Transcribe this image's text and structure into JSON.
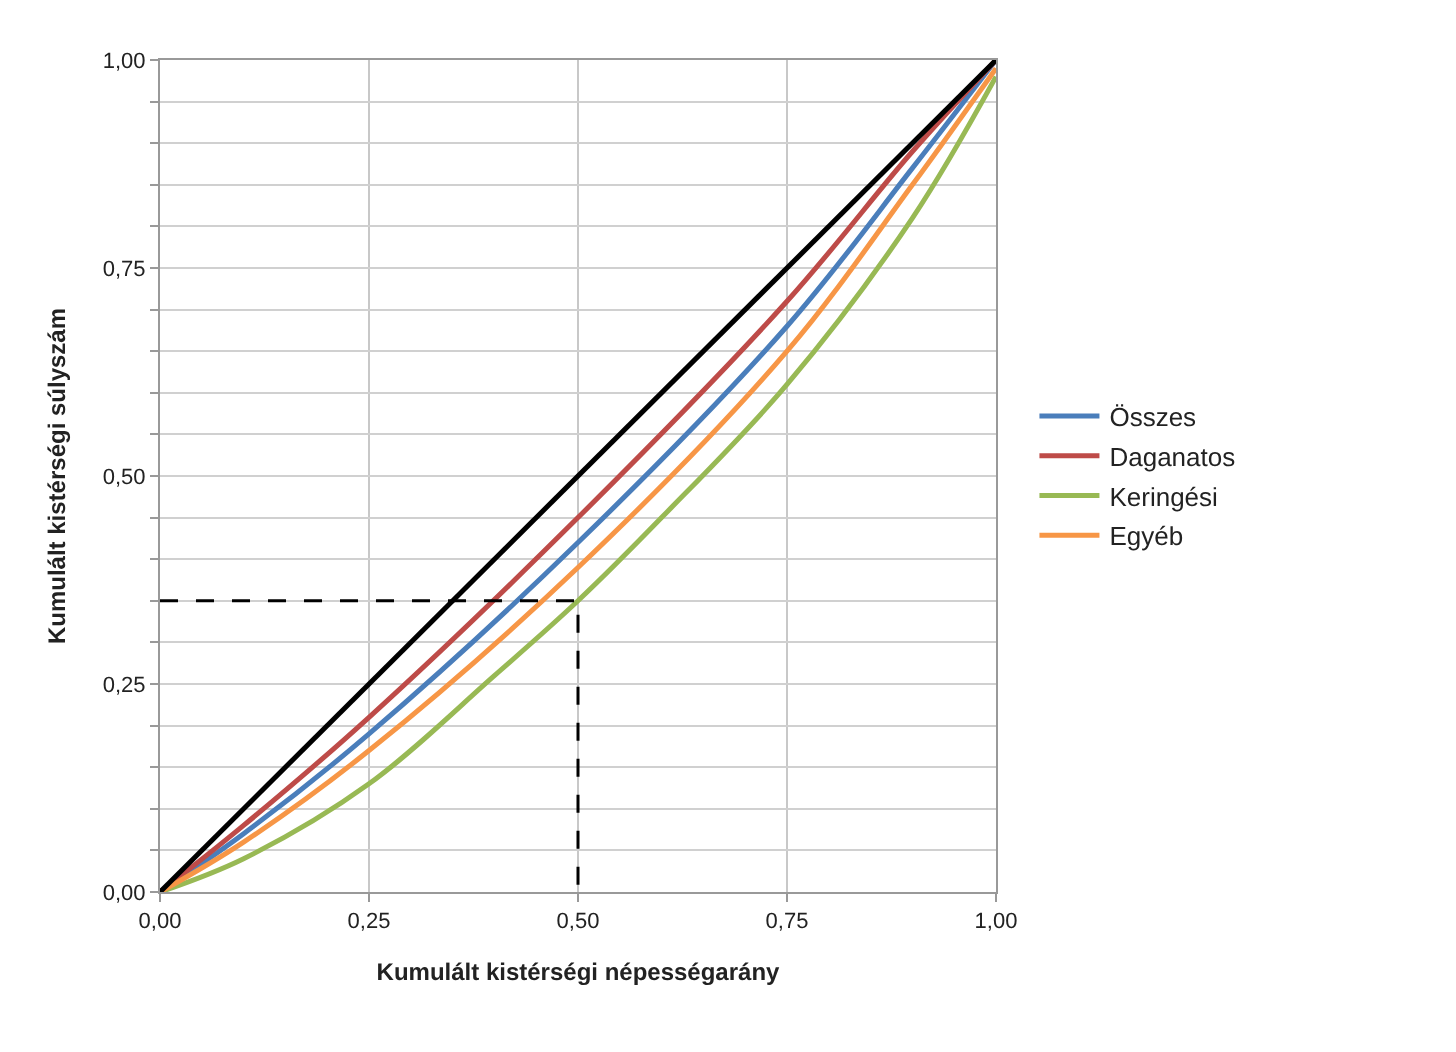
{
  "chart_data": {
    "type": "line",
    "xlabel": "Kumulált kistérségi népességarány",
    "ylabel": "Kumulált kistérségi súlyszám",
    "xlim": [
      0,
      1
    ],
    "ylim": [
      0,
      1
    ],
    "xticks": [
      {
        "value": 0,
        "label": "0,00"
      },
      {
        "value": 0.25,
        "label": "0,25"
      },
      {
        "value": 0.5,
        "label": "0,50"
      },
      {
        "value": 0.75,
        "label": "0,75"
      },
      {
        "value": 1,
        "label": "1,00"
      }
    ],
    "yticks": [
      {
        "value": 0,
        "label": "0,00"
      },
      {
        "value": 0.05,
        "label": null
      },
      {
        "value": 0.1,
        "label": null
      },
      {
        "value": 0.15,
        "label": null
      },
      {
        "value": 0.2,
        "label": null
      },
      {
        "value": 0.25,
        "label": "0,25"
      },
      {
        "value": 0.3,
        "label": null
      },
      {
        "value": 0.35,
        "label": null
      },
      {
        "value": 0.4,
        "label": null
      },
      {
        "value": 0.45,
        "label": null
      },
      {
        "value": 0.5,
        "label": "0,50"
      },
      {
        "value": 0.55,
        "label": null
      },
      {
        "value": 0.6,
        "label": null
      },
      {
        "value": 0.65,
        "label": null
      },
      {
        "value": 0.7,
        "label": null
      },
      {
        "value": 0.75,
        "label": "0,75"
      },
      {
        "value": 0.8,
        "label": null
      },
      {
        "value": 0.85,
        "label": null
      },
      {
        "value": 0.9,
        "label": null
      },
      {
        "value": 0.95,
        "label": null
      },
      {
        "value": 1,
        "label": "1,00"
      }
    ],
    "grid": true,
    "legend": "right",
    "marker": "none",
    "line_style": "solid",
    "series": [
      {
        "name": "Összes",
        "color": "#4a7ebb",
        "x": [
          0,
          0.1,
          0.25,
          0.5,
          0.75,
          0.9,
          1
        ],
        "values": [
          0,
          0.07,
          0.19,
          0.42,
          0.68,
          0.87,
          1
        ]
      },
      {
        "name": "Daganatos",
        "color": "#be4b48",
        "x": [
          0,
          0.1,
          0.25,
          0.5,
          0.75,
          0.9,
          1
        ],
        "values": [
          0,
          0.08,
          0.21,
          0.45,
          0.71,
          0.89,
          1
        ]
      },
      {
        "name": "Keringési",
        "color": "#98b954",
        "x": [
          0,
          0.1,
          0.25,
          0.4,
          0.5,
          0.6,
          0.75,
          0.9,
          1
        ],
        "values": [
          0,
          0.04,
          0.13,
          0.26,
          0.35,
          0.45,
          0.61,
          0.81,
          0.98
        ]
      },
      {
        "name": "Egyéb",
        "color": "#f79646",
        "x": [
          0,
          0.1,
          0.25,
          0.5,
          0.75,
          0.9,
          1
        ],
        "values": [
          0,
          0.06,
          0.17,
          0.39,
          0.65,
          0.85,
          0.99
        ]
      },
      {
        "color": "#000000",
        "x": [
          0,
          1
        ],
        "values": [
          0,
          1
        ]
      },
      {
        "color": "#000000",
        "line_style": "dashed",
        "x": [
          0,
          0.5,
          0.5
        ],
        "values": [
          0.35,
          0.35,
          0
        ]
      }
    ]
  }
}
